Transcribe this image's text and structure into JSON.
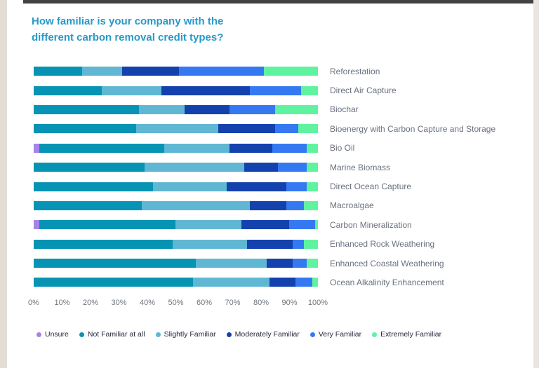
{
  "title": {
    "line1": "How familiar is your company with the",
    "line2": "different carbon removal credit types?"
  },
  "chart_data": {
    "type": "bar",
    "orientation": "horizontal-stacked",
    "title": "How familiar is your company with the different carbon removal credit types?",
    "unit": "percent",
    "xlim": [
      0,
      100
    ],
    "grid": false,
    "legend_position": "bottom",
    "x_axis_ticks": [
      "0%",
      "10%",
      "20%",
      "30%",
      "40%",
      "50%",
      "60%",
      "70%",
      "80%",
      "90%",
      "100%"
    ],
    "categories": [
      "Reforestation",
      "Direct Air Capture",
      "Biochar",
      "Bioenergy with Carbon Capture and Storage",
      "Bio Oil",
      "Marine Biomass",
      "Direct Ocean Capture",
      "Macroalgae",
      "Carbon Mineralization",
      "Enhanced Rock Weathering",
      "Enhanced Coastal Weathering",
      "Ocean Alkalinity Enhancement"
    ],
    "series": [
      {
        "name": "Unsure",
        "color": "#a583ea",
        "values": [
          0,
          0,
          0,
          0,
          2,
          0,
          0,
          0,
          2,
          0,
          0,
          0
        ]
      },
      {
        "name": "Not Familiar at all",
        "color": "#0793b3",
        "values": [
          17,
          24,
          37,
          36,
          44,
          39,
          42,
          38,
          48,
          49,
          57,
          56
        ]
      },
      {
        "name": "Slightly Familiar",
        "color": "#5fb7d3",
        "values": [
          14,
          21,
          16,
          29,
          23,
          35,
          26,
          38,
          23,
          26,
          25,
          27
        ]
      },
      {
        "name": "Moderately Familiar",
        "color": "#1341ae",
        "values": [
          20,
          31,
          16,
          20,
          15,
          12,
          21,
          13,
          17,
          16,
          9,
          9
        ]
      },
      {
        "name": "Very Familiar",
        "color": "#3579f2",
        "values": [
          30,
          18,
          16,
          8,
          12,
          10,
          7,
          6,
          9,
          4,
          5,
          6
        ]
      },
      {
        "name": "Extremely Familiar",
        "color": "#5ff3a0",
        "values": [
          19,
          6,
          15,
          7,
          4,
          4,
          4,
          5,
          1,
          5,
          4,
          2
        ]
      }
    ]
  }
}
